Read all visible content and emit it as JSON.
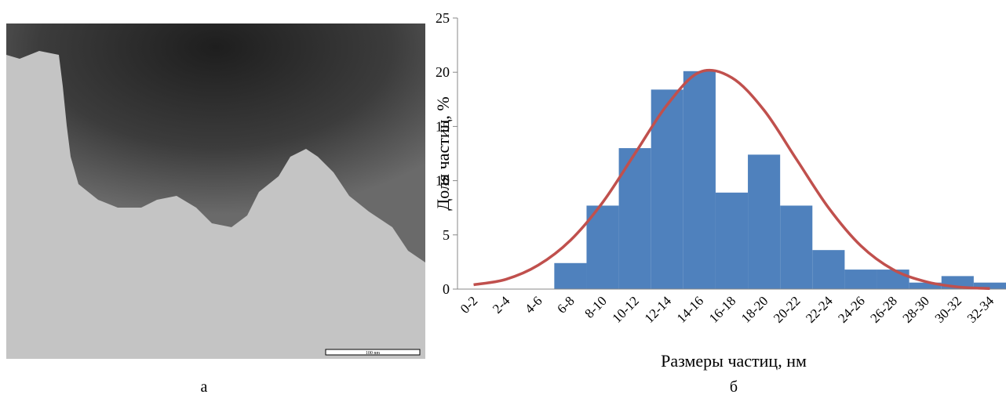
{
  "figure": {
    "panel_a_label": "а",
    "scale_bar": "100 nm",
    "panel_b_label": "б"
  },
  "chart_data": {
    "type": "bar",
    "x_label": "Размеры частиц, нм",
    "y_label": "Доля частиц, %",
    "categories": [
      "0-2",
      "2-4",
      "4-6",
      "6-8",
      "8-10",
      "10-12",
      "12-14",
      "14-16",
      "16-18",
      "18-20",
      "20-22",
      "22-24",
      "24-26",
      "26-28",
      "28-30",
      "30-32",
      "32-34"
    ],
    "values": [
      0,
      0,
      0,
      2.4,
      7.7,
      13,
      18.4,
      20.1,
      8.9,
      12.4,
      7.7,
      3.6,
      1.8,
      1.8,
      0.6,
      1.2,
      0.6
    ],
    "color": "#4f81bd",
    "curve": {
      "color": "#c0504d",
      "values": [
        0.4,
        0.9,
        2.2,
        4.5,
        8,
        12.5,
        17,
        20,
        19.5,
        16.5,
        12,
        7.5,
        4,
        1.8,
        0.7,
        0.2,
        0.05
      ]
    },
    "ylim": [
      0,
      25
    ],
    "yticks": [
      0,
      5,
      10,
      15,
      20,
      25
    ]
  }
}
